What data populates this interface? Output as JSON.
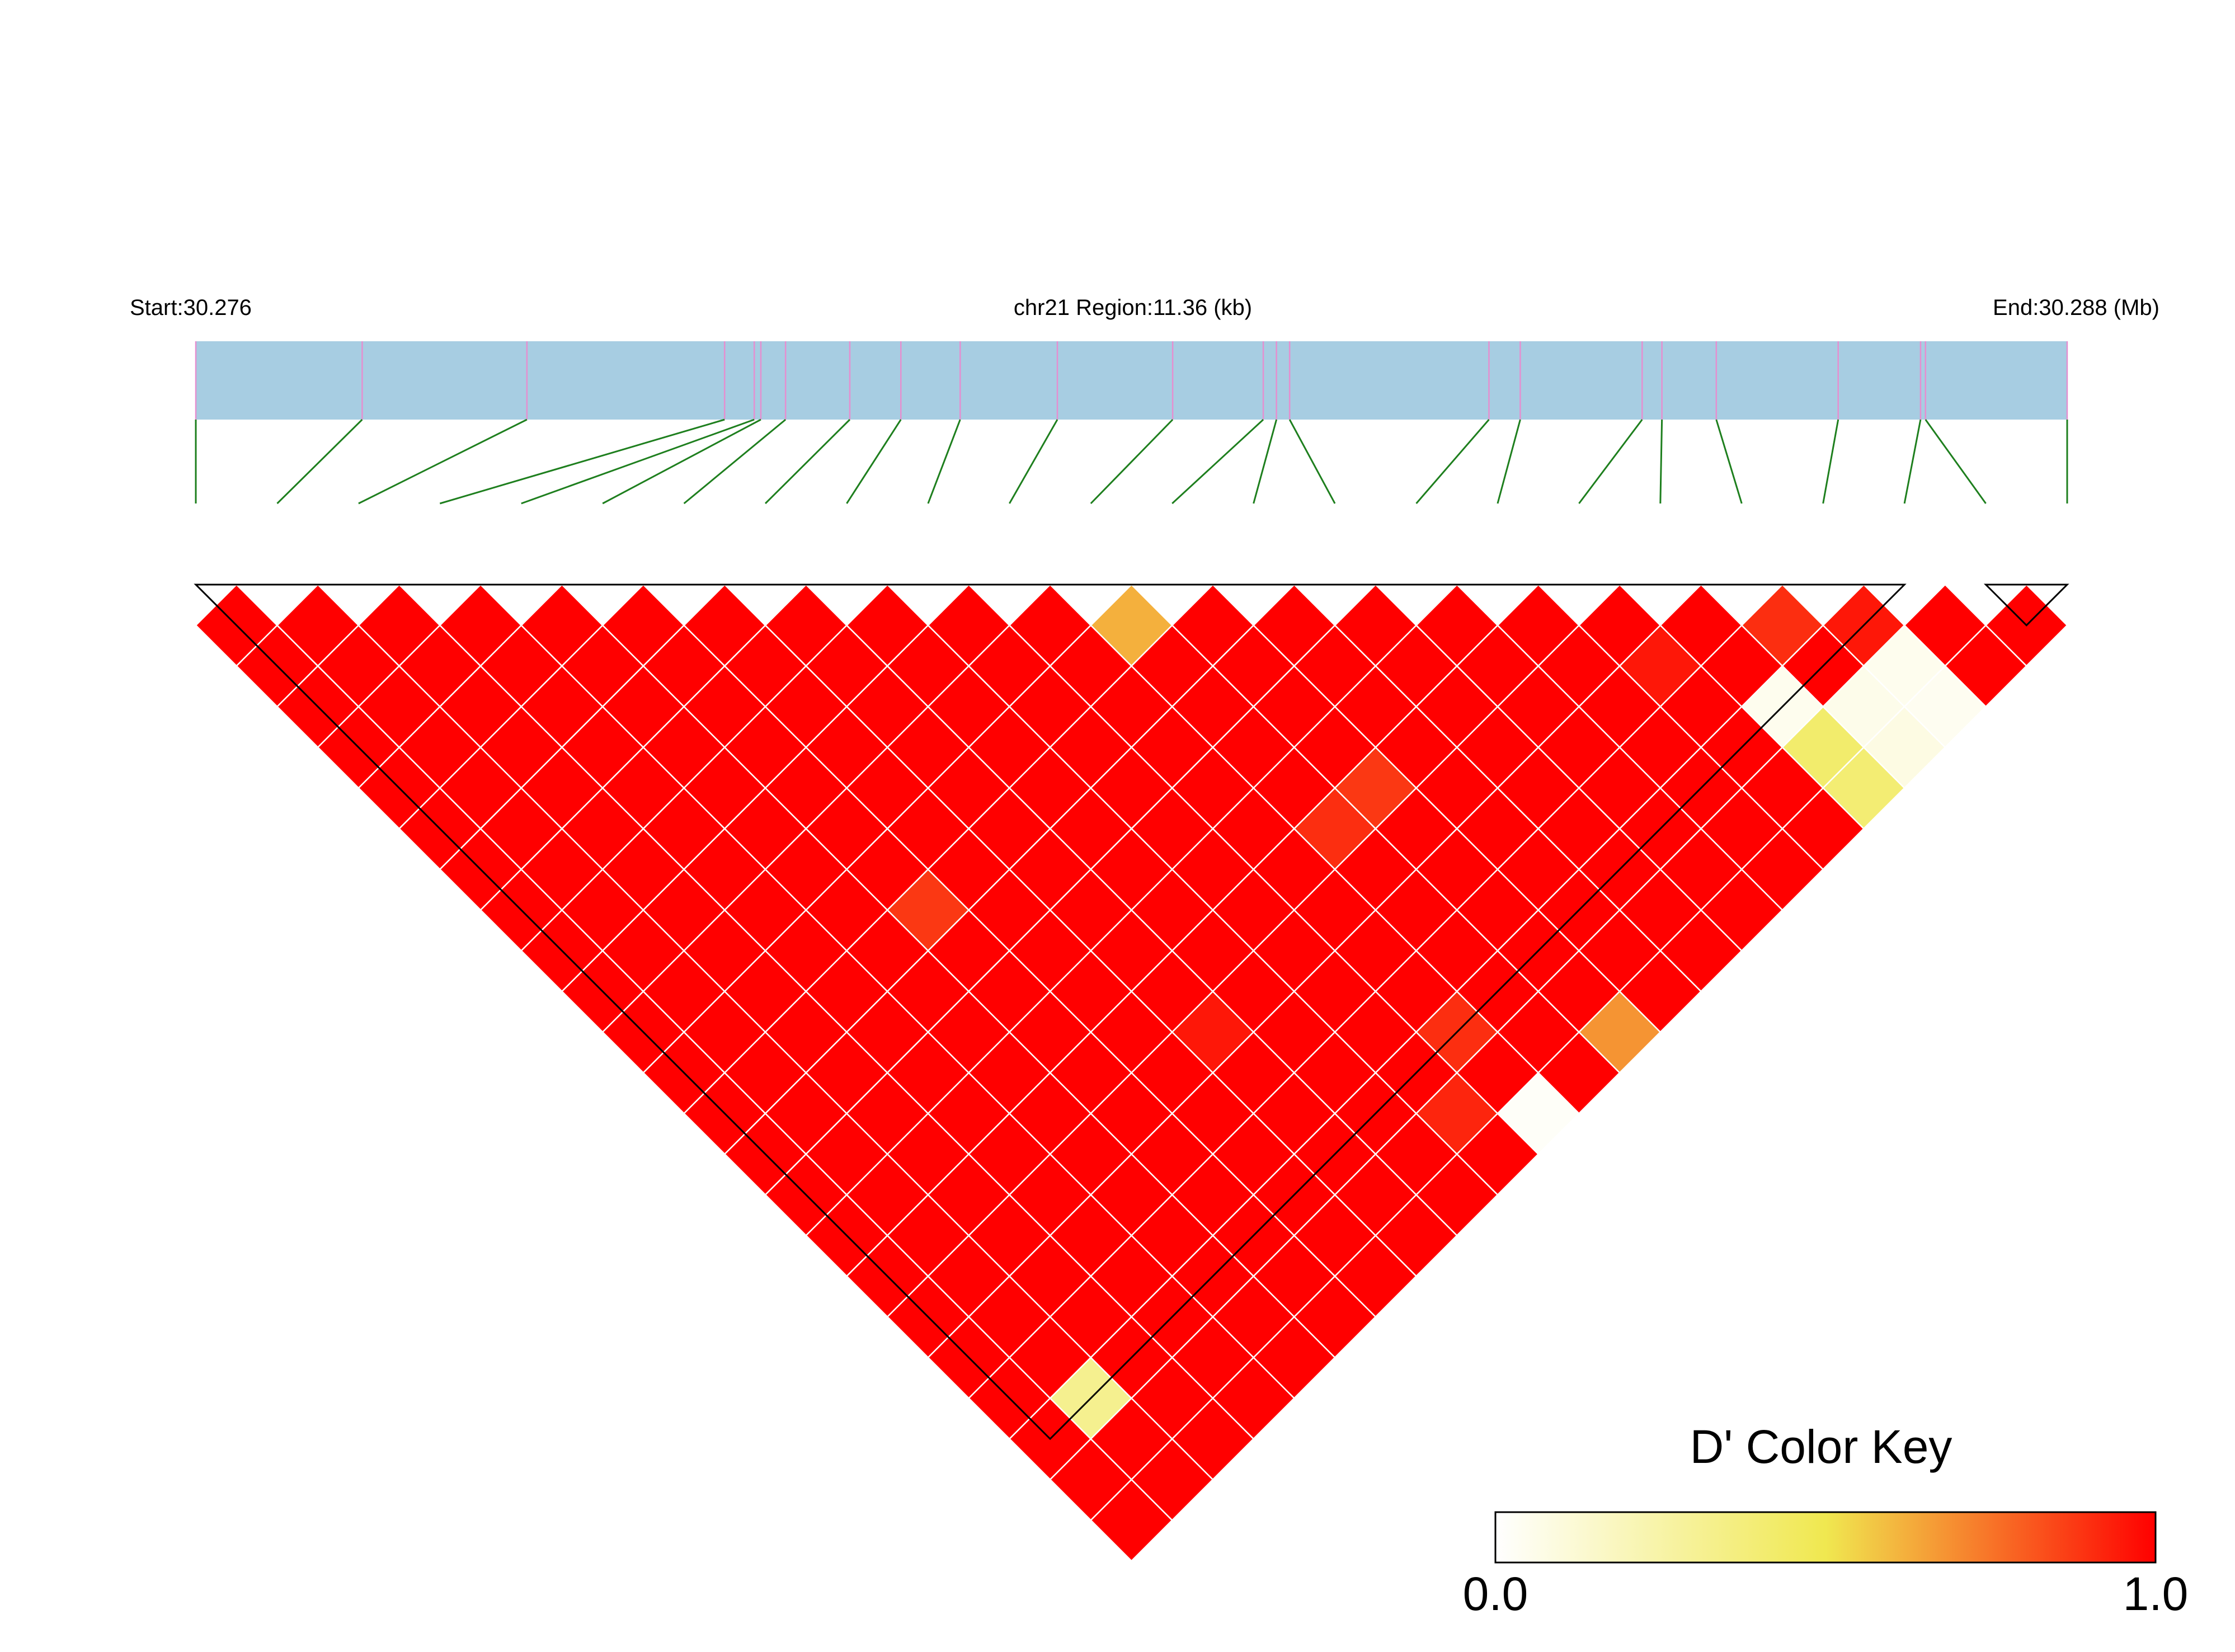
{
  "header": {
    "start_label": "Start:30.276",
    "region_label": "chr21 Region:11.36 (kb)",
    "end_label": "End:30.288 (Mb)"
  },
  "legend": {
    "title": "D' Color Key",
    "min_label": "0.0",
    "max_label": "1.0"
  },
  "colors": {
    "region_bar": "#a7cde2",
    "snp_tick": "#e58fd0",
    "connector": "#1e7f1e",
    "ld_high": "#ff0000",
    "ld_mid": "#f0e850",
    "ld_low": "#ffffff",
    "cell_border": "#ffffff",
    "block_outline": "#000000"
  },
  "chart_data": {
    "type": "heatmap",
    "measure": "D'",
    "chromosome": "chr21",
    "region_start_mb": 30.276,
    "region_end_mb": 30.288,
    "region_length_kb": 11.36,
    "n_snps": 24,
    "snp_positions_mb": [
      30.276,
      30.27701,
      30.27801,
      30.27921,
      30.27939,
      30.27943,
      30.27958,
      30.27997,
      30.28028,
      30.28064,
      30.28123,
      30.28193,
      30.28248,
      30.28256,
      30.28264,
      30.28385,
      30.28404,
      30.28478,
      30.2849,
      30.28523,
      30.28597,
      30.28647,
      30.2865,
      30.28736
    ],
    "default_dprime": 1.0,
    "dprime_exceptions": [
      {
        "snp_i": 1,
        "snp_j": 21,
        "dprime": 0.32
      },
      {
        "snp_i": 12,
        "snp_j": 23,
        "dprime": 0.68
      },
      {
        "snp_i": 11,
        "snp_j": 12,
        "dprime": 0.62
      },
      {
        "snp_i": 9,
        "snp_j": 22,
        "dprime": 0.92
      },
      {
        "snp_i": 10,
        "snp_j": 23,
        "dprime": 0.02
      },
      {
        "snp_i": 20,
        "snp_j": 23,
        "dprime": 0.04
      },
      {
        "snp_i": 20,
        "snp_j": 22,
        "dprime": 0.05
      },
      {
        "snp_i": 19,
        "snp_j": 23,
        "dprime": 0.08
      },
      {
        "snp_i": 19,
        "snp_j": 22,
        "dprime": 0.06
      },
      {
        "snp_i": 18,
        "snp_j": 23,
        "dprime": 0.4
      },
      {
        "snp_i": 18,
        "snp_j": 22,
        "dprime": 0.42
      },
      {
        "snp_i": 18,
        "snp_j": 21,
        "dprime": 0.05
      },
      {
        "snp_i": 5,
        "snp_j": 13,
        "dprime": 0.88
      },
      {
        "snp_i": 11,
        "snp_j": 17,
        "dprime": 0.9
      },
      {
        "snp_i": 12,
        "snp_j": 17,
        "dprime": 0.88
      },
      {
        "snp_i": 10,
        "snp_j": 21,
        "dprime": 0.9
      },
      {
        "snp_i": 17,
        "snp_j": 19,
        "dprime": 0.95
      },
      {
        "snp_i": 19,
        "snp_j": 20,
        "dprime": 0.9
      },
      {
        "snp_i": 20,
        "snp_j": 21,
        "dprime": 0.95
      },
      {
        "snp_i": 7,
        "snp_j": 18,
        "dprime": 0.95
      }
    ],
    "ld_blocks": [
      {
        "from_snp": 0,
        "to_snp": 21
      },
      {
        "from_snp": 22,
        "to_snp": 23
      }
    ],
    "color_key": {
      "min": 0.0,
      "max": 1.0,
      "low": "#ffffff",
      "mid": "#f0e850",
      "high": "#ff0000"
    }
  }
}
